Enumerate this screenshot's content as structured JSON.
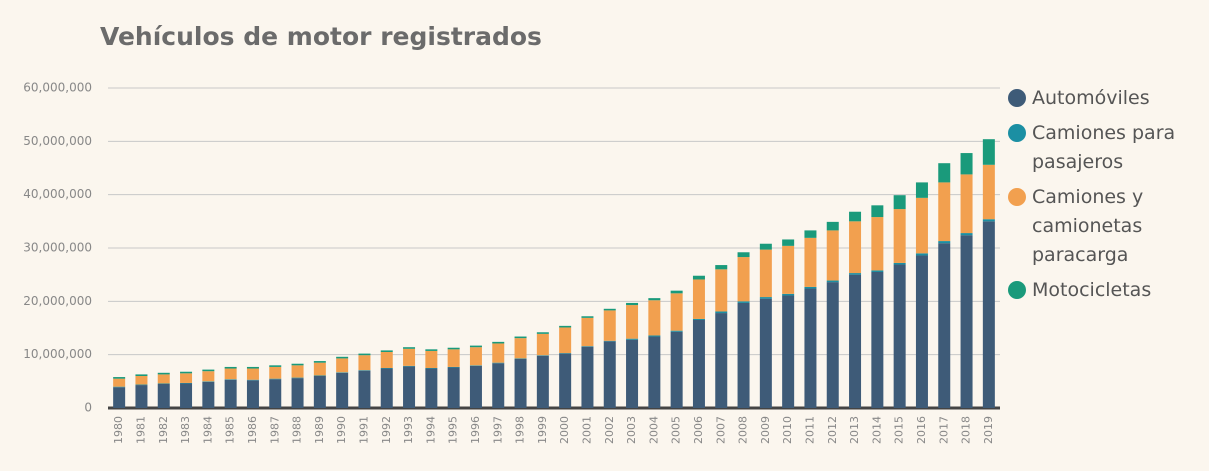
{
  "chart_data": {
    "type": "stacked_bar",
    "title": "Vehículos de motor registrados",
    "categories": [
      "1980",
      "1981",
      "1982",
      "1983",
      "1984",
      "1985",
      "1986",
      "1987",
      "1988",
      "1989",
      "1990",
      "1991",
      "1992",
      "1993",
      "1994",
      "1995",
      "1996",
      "1997",
      "1998",
      "1999",
      "2000",
      "2001",
      "2002",
      "2003",
      "2004",
      "2005",
      "2006",
      "2007",
      "2008",
      "2009",
      "2010",
      "2011",
      "2012",
      "2013",
      "2014",
      "2015",
      "2016",
      "2017",
      "2018",
      "2019"
    ],
    "series": [
      {
        "name": "Automóviles",
        "color": "#3e5b78",
        "values": [
          3900000,
          4300000,
          4500000,
          4600000,
          4900000,
          5300000,
          5200000,
          5400000,
          5600000,
          6000000,
          6600000,
          7000000,
          7400000,
          7800000,
          7400000,
          7600000,
          7900000,
          8400000,
          9200000,
          9800000,
          10200000,
          11500000,
          12500000,
          12800000,
          13400000,
          14300000,
          16500000,
          17800000,
          19700000,
          20500000,
          21100000,
          22400000,
          23600000,
          25000000,
          25500000,
          26900000,
          28600000,
          30900000,
          32400000,
          35000000
        ]
      },
      {
        "name": "Camiones para pasajeros",
        "color": "#1b8fa3",
        "values": [
          100000,
          100000,
          100000,
          100000,
          100000,
          100000,
          100000,
          100000,
          100000,
          100000,
          100000,
          100000,
          100000,
          100000,
          100000,
          100000,
          100000,
          100000,
          100000,
          100000,
          100000,
          100000,
          100000,
          200000,
          200000,
          200000,
          200000,
          300000,
          300000,
          300000,
          300000,
          300000,
          300000,
          300000,
          300000,
          300000,
          400000,
          400000,
          400000,
          400000
        ]
      },
      {
        "name": "Camiones y camionetas paracarga",
        "color": "#f2a04f",
        "values": [
          1500000,
          1600000,
          1700000,
          1800000,
          1900000,
          2000000,
          2100000,
          2200000,
          2300000,
          2400000,
          2600000,
          2800000,
          3000000,
          3200000,
          3200000,
          3300000,
          3400000,
          3600000,
          3800000,
          4000000,
          4800000,
          5300000,
          5700000,
          6300000,
          6600000,
          7000000,
          7400000,
          7900000,
          8300000,
          8900000,
          9000000,
          9200000,
          9400000,
          9700000,
          10000000,
          10100000,
          10400000,
          11000000,
          11000000,
          10200000
        ]
      },
      {
        "name": "Motocicletas",
        "color": "#1a9a7b",
        "values": [
          300000,
          300000,
          300000,
          300000,
          300000,
          300000,
          300000,
          300000,
          300000,
          300000,
          300000,
          300000,
          300000,
          300000,
          300000,
          300000,
          300000,
          300000,
          300000,
          300000,
          300000,
          300000,
          300000,
          400000,
          400000,
          500000,
          700000,
          800000,
          900000,
          1100000,
          1200000,
          1400000,
          1600000,
          1800000,
          2200000,
          2600000,
          2900000,
          3600000,
          4000000,
          4800000
        ]
      }
    ],
    "ylim": [
      0,
      60000000
    ],
    "yticks": [
      0,
      {
        "value": 10000000,
        "label": "10,000,000"
      },
      {
        "value": 20000000,
        "label": "20,000,000"
      },
      {
        "value": 30000000,
        "label": "30,000,000"
      },
      {
        "value": 40000000,
        "label": "40,000,000"
      },
      {
        "value": 50000000,
        "label": "50,000,000"
      },
      {
        "value": 60000000,
        "label": "60,000,000"
      }
    ],
    "grid": true,
    "legend": "right"
  }
}
